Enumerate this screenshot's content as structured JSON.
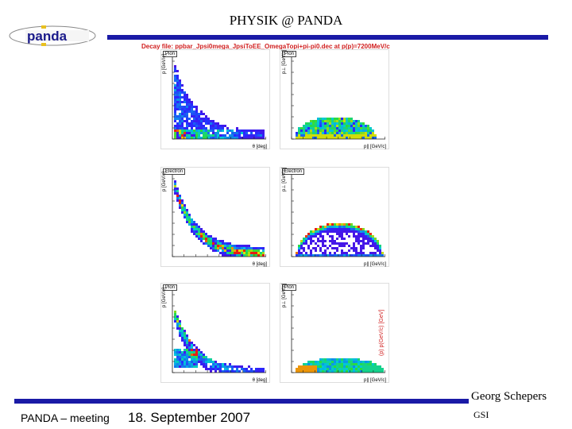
{
  "slide": {
    "title": "PHYSIK @ PANDA",
    "logo_text": "panda",
    "decay_label": "Decay file: ppbar_Jpsi0mega_JpsiToEE_OmegaTopi+pi-pi0.dec at p(p)=7200MeV/c",
    "side_label": "(p) p(GeV/c) [GeV]",
    "footer": {
      "meeting": "PANDA – meeting",
      "date": "18. September 2007",
      "author": "Georg Schepers",
      "institute": "GSI"
    }
  },
  "panels": [
    {
      "label": "Pion",
      "ylabel": "p [GeV/c]",
      "xlabel": "θ [deg]"
    },
    {
      "label": "Pion",
      "ylabel": "p⊥ [GeV/c]",
      "xlabel": "p∥ [GeV/c]"
    },
    {
      "label": "Electron",
      "ylabel": "p [GeV/c]",
      "xlabel": "θ [deg]"
    },
    {
      "label": "Electron",
      "ylabel": "p⊥ [GeV/c]",
      "xlabel": "p∥ [GeV/c]"
    },
    {
      "label": "Pion",
      "ylabel": "p [GeV/c]",
      "xlabel": "θ [deg]"
    },
    {
      "label": "Pion",
      "ylabel": "p⊥ [GeV/c]",
      "xlabel": "p∥ [GeV/c]"
    }
  ],
  "colors": {
    "bar": "#1a1aa6",
    "accent_red": "#d02020"
  }
}
